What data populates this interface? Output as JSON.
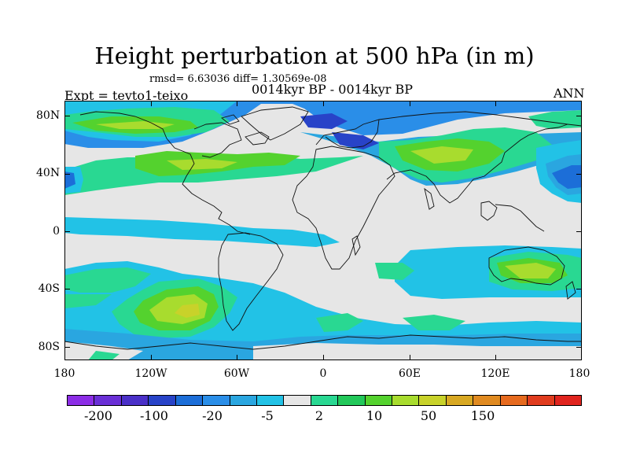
{
  "title": "Height perturbation at 500 hPa (in m)",
  "stats": "rmsd= 6.63036 diff= 1.30569e-08",
  "period": "0014kyr BP - 0014kyr BP",
  "experiment": "Expt = tevto1-teixo",
  "season": "ANN",
  "axes": {
    "y_ticks": [
      "80N",
      "40N",
      "0",
      "40S",
      "80S"
    ],
    "x_ticks": [
      "180",
      "120W",
      "60W",
      "0",
      "60E",
      "120E",
      "180"
    ]
  },
  "colorbar": {
    "colors": [
      "#8c2de6",
      "#6a2fd6",
      "#4a30c8",
      "#2843c8",
      "#1c6ed8",
      "#2a8ee8",
      "#2aa6e0",
      "#22c2e6",
      "#e6e6e6",
      "#29d892",
      "#22c85a",
      "#54d22e",
      "#a8dc2e",
      "#c8d22a",
      "#d8a822",
      "#e08a20",
      "#e66a1e",
      "#e03c1e",
      "#e0241e"
    ],
    "labels": [
      "-200",
      "-100",
      "-20",
      "-5",
      "2",
      "10",
      "50",
      "150"
    ]
  },
  "map": {
    "projection": "cylindrical equidistant",
    "longitude_range": [
      -180,
      180
    ],
    "latitude_range": [
      -90,
      90
    ],
    "coastlines": true
  }
}
